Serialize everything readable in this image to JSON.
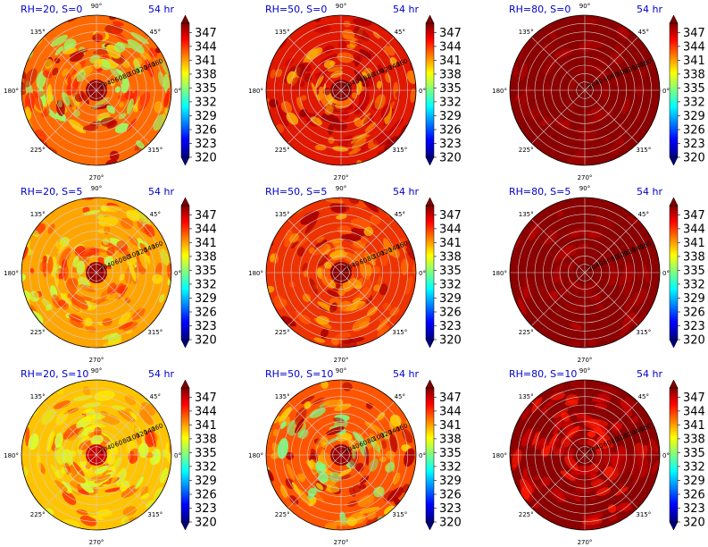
{
  "chart_data": [
    {
      "type": "heatmap",
      "title": "RH=20, S=0",
      "time_label": "54 hr",
      "rh": 20,
      "s": 0,
      "base_color": "#ff6a00",
      "patch_colors": [
        "#ffcc00",
        "#ff2200",
        "#b40000",
        "#99ff66"
      ],
      "eye_color": "#990000"
    },
    {
      "type": "heatmap",
      "title": "RH=50, S=0",
      "time_label": "54 hr",
      "rh": 50,
      "s": 0,
      "base_color": "#e01800",
      "patch_colors": [
        "#ff7a00",
        "#ffb000",
        "#9a0000",
        "#c30000"
      ],
      "eye_color": "#880000"
    },
    {
      "type": "heatmap",
      "title": "RH=80, S=0",
      "time_label": "54 hr",
      "rh": 80,
      "s": 0,
      "base_color": "#8b0000",
      "patch_colors": [
        "#a00000",
        "#b00000"
      ],
      "eye_color": "#800000"
    },
    {
      "type": "heatmap",
      "title": "RH=20, S=5",
      "time_label": "54 hr",
      "rh": 20,
      "s": 5,
      "base_color": "#ffa500",
      "patch_colors": [
        "#ffe000",
        "#ff5a00",
        "#c8ff40",
        "#ff2a00"
      ],
      "eye_color": "#990000"
    },
    {
      "type": "heatmap",
      "title": "RH=50, S=5",
      "time_label": "54 hr",
      "rh": 50,
      "s": 5,
      "base_color": "#ee3300",
      "patch_colors": [
        "#ff8800",
        "#ffb300",
        "#aa0000",
        "#ff5500"
      ],
      "eye_color": "#880000"
    },
    {
      "type": "heatmap",
      "title": "RH=80, S=5",
      "time_label": "54 hr",
      "rh": 80,
      "s": 5,
      "base_color": "#8b0000",
      "patch_colors": [
        "#a50000",
        "#bb0000"
      ],
      "eye_color": "#800000"
    },
    {
      "type": "heatmap",
      "title": "RH=20, S=10",
      "time_label": "54 hr",
      "rh": 20,
      "s": 10,
      "base_color": "#ffc400",
      "patch_colors": [
        "#ffee00",
        "#ff8800",
        "#d8ff30",
        "#ff3300"
      ],
      "eye_color": "#cc0000"
    },
    {
      "type": "heatmap",
      "title": "RH=50, S=10",
      "time_label": "54 hr",
      "rh": 50,
      "s": 10,
      "base_color": "#ff5500",
      "patch_colors": [
        "#ffcc00",
        "#77ff88",
        "#b00000",
        "#ff9900"
      ],
      "eye_color": "#990000"
    },
    {
      "type": "heatmap",
      "title": "RH=80, S=10",
      "time_label": "54 hr",
      "rh": 80,
      "s": 10,
      "base_color": "#8b0000",
      "patch_colors": [
        "#d40000",
        "#ff1a00",
        "#aa0000"
      ],
      "eye_color": "#800000"
    }
  ],
  "polar_axes": {
    "angle_labels": [
      "0°",
      "45°",
      "90°",
      "135°",
      "180°",
      "225°",
      "270°",
      "315°"
    ],
    "radial_ticks": [
      "20",
      "40",
      "60",
      "80",
      "100",
      "120",
      "140",
      "160"
    ],
    "radial_max": 180,
    "radial_label_angle_deg": 22.5
  },
  "colorbar": {
    "colormap": "jet",
    "ticks": [
      "347",
      "344",
      "341",
      "338",
      "335",
      "332",
      "329",
      "326",
      "323",
      "320"
    ],
    "min": 320,
    "max": 349,
    "extend": "both"
  }
}
